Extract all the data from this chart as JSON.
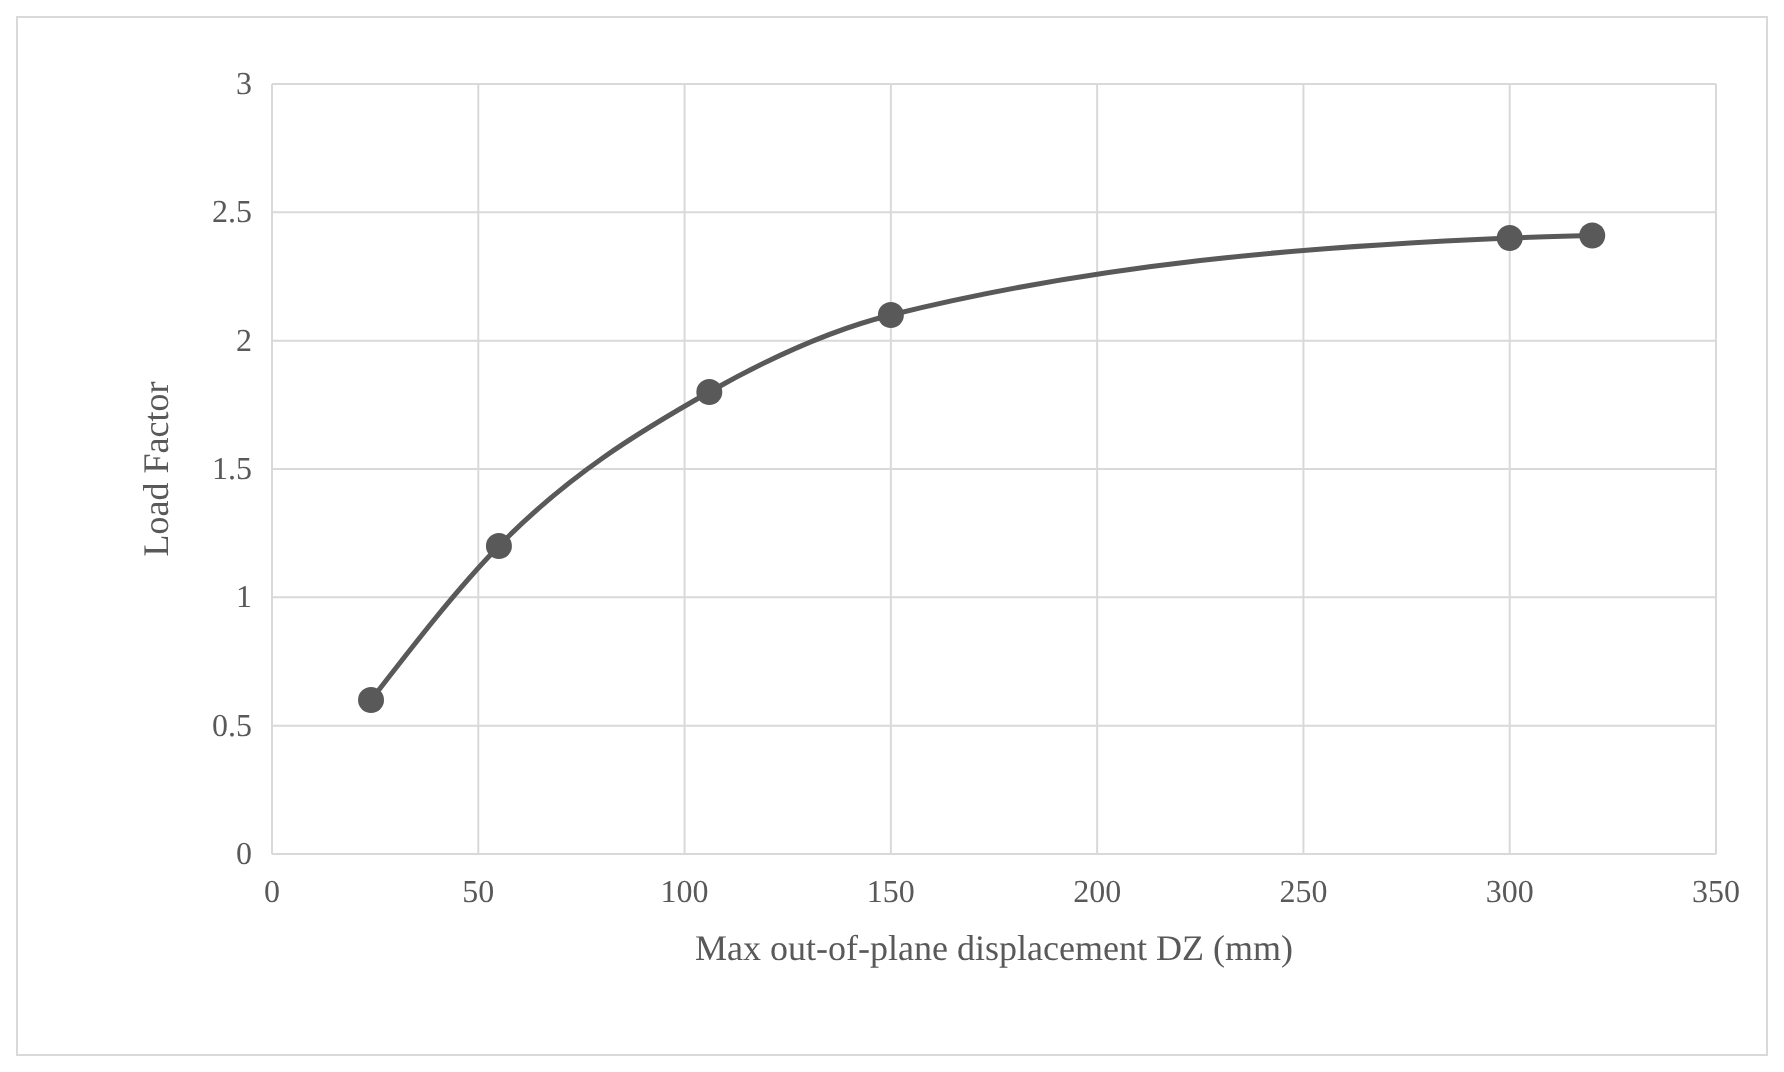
{
  "chart_data": {
    "type": "line",
    "xlabel": "Max out-of-plane displacement DZ (mm)",
    "ylabel": "Load Factor",
    "x": [
      24,
      55,
      106,
      150,
      300,
      320
    ],
    "series": [
      {
        "color": "#595959",
        "values": [
          0.6,
          1.2,
          1.8,
          2.1,
          2.4,
          2.41
        ]
      }
    ],
    "xlim": [
      0,
      350
    ],
    "xticks": [
      0,
      50,
      100,
      150,
      200,
      250,
      300,
      350
    ],
    "ylim": [
      0,
      3
    ],
    "yticks": [
      0,
      0.5,
      1,
      1.5,
      2,
      2.5,
      3
    ],
    "grid": true,
    "marker": "circle",
    "line_style": "solid"
  }
}
